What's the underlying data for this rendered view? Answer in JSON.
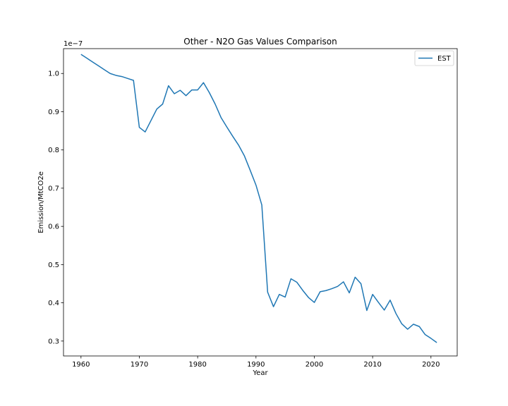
{
  "chart_data": {
    "type": "line",
    "title": "Other - N2O Gas Values Comparison",
    "xlabel": "Year",
    "ylabel": "Emission/MtCO2e",
    "y_offset_label": "1e−7",
    "xlim": [
      1957,
      2024.5
    ],
    "ylim": [
      0.261,
      1.065
    ],
    "x_ticks": [
      1960,
      1970,
      1980,
      1990,
      2000,
      2010,
      2020
    ],
    "y_ticks": [
      0.3,
      0.4,
      0.5,
      0.6,
      0.7,
      0.8,
      0.9,
      1.0
    ],
    "grid": false,
    "legend_position": "top-right",
    "series": [
      {
        "name": "EST",
        "color": "#1f77b4",
        "x": [
          1960,
          1961,
          1962,
          1963,
          1964,
          1965,
          1966,
          1967,
          1968,
          1969,
          1970,
          1971,
          1972,
          1973,
          1974,
          1975,
          1976,
          1977,
          1978,
          1979,
          1980,
          1981,
          1982,
          1983,
          1984,
          1985,
          1986,
          1987,
          1988,
          1989,
          1990,
          1991,
          1992,
          1993,
          1994,
          1995,
          1996,
          1997,
          1998,
          1999,
          2000,
          2001,
          2002,
          2003,
          2004,
          2005,
          2006,
          2007,
          2008,
          2009,
          2010,
          2011,
          2012,
          2013,
          2014,
          2015,
          2016,
          2017,
          2018,
          2019,
          2020,
          2021
        ],
        "values": [
          1.05,
          1.04,
          1.03,
          1.02,
          1.01,
          1.0,
          0.995,
          0.992,
          0.987,
          0.982,
          0.859,
          0.847,
          0.877,
          0.907,
          0.92,
          0.968,
          0.947,
          0.956,
          0.942,
          0.957,
          0.957,
          0.976,
          0.95,
          0.92,
          0.885,
          0.86,
          0.836,
          0.813,
          0.785,
          0.747,
          0.708,
          0.656,
          0.428,
          0.39,
          0.422,
          0.415,
          0.463,
          0.454,
          0.433,
          0.414,
          0.401,
          0.429,
          0.432,
          0.437,
          0.443,
          0.455,
          0.426,
          0.467,
          0.45,
          0.38,
          0.422,
          0.401,
          0.381,
          0.407,
          0.372,
          0.345,
          0.331,
          0.344,
          0.338,
          0.317,
          0.307,
          0.296
        ]
      }
    ]
  }
}
